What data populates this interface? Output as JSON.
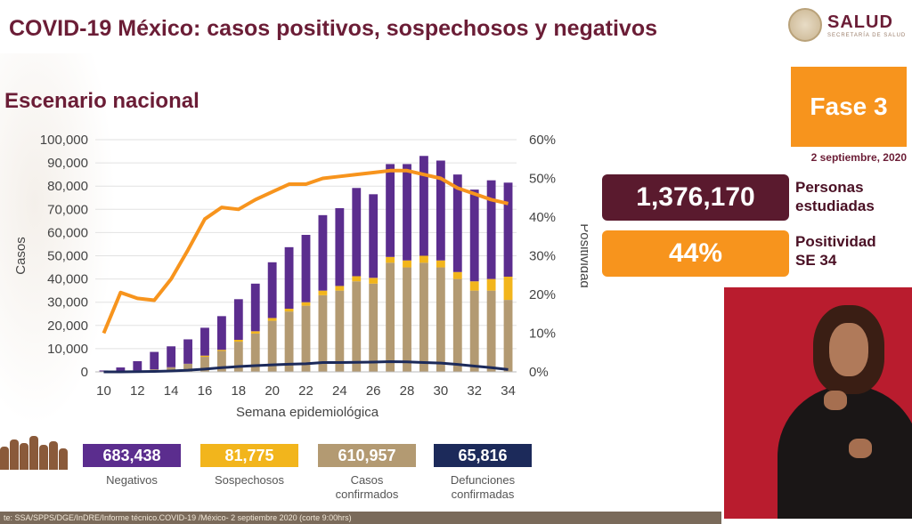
{
  "header": {
    "title": "COVID-19 México: casos positivos, sospechosos y negativos",
    "subtitle": "Escenario nacional",
    "logo_text": "SALUD",
    "logo_subtext": "SECRETARÍA DE SALUD"
  },
  "fase": {
    "label": "Fase 3",
    "date": "2 septiembre, 2020"
  },
  "stats": {
    "estudiadas_value": "1,376,170",
    "estudiadas_label_1": "Personas",
    "estudiadas_label_2": "estudiadas",
    "positividad_value": "44%",
    "positividad_label_1": "Positividad",
    "positividad_label_2": "SE 34"
  },
  "legend": [
    {
      "value": "683,438",
      "label_1": "Negativos",
      "label_2": "",
      "color": "#5b2d8e"
    },
    {
      "value": "81,775",
      "label_1": "Sospechosos",
      "label_2": "",
      "color": "#f2b51c"
    },
    {
      "value": "610,957",
      "label_1": "Casos",
      "label_2": "confirmados",
      "color": "#b39a72"
    },
    {
      "value": "65,816",
      "label_1": "Defunciones",
      "label_2": "confirmadas",
      "color": "#1c2a5a"
    }
  ],
  "source": "te: SSA/SPPS/DGE/InDRE/Informe técnico.COVID-19 /México- 2 septiembre 2020 (corte 9:00hrs)",
  "colors": {
    "maroon": "#6b1d36",
    "orange": "#f7941d",
    "dark_maroon": "#5a1a2e",
    "negativos": "#5b2d8e",
    "sospechosos": "#f2b51c",
    "confirmados": "#b39a72",
    "defunciones": "#1c2a5a",
    "positividad": "#f7941d"
  },
  "chart_data": {
    "type": "bar",
    "xlabel": "Semana epidemiológica",
    "ylabel": "Casos",
    "y2label": "Positividad",
    "ylim": [
      0,
      100000
    ],
    "y2lim": [
      0,
      60
    ],
    "y_ticks": [
      "0",
      "10,000",
      "20,000",
      "30,000",
      "40,000",
      "50,000",
      "60,000",
      "70,000",
      "80,000",
      "90,000",
      "100,000"
    ],
    "y2_ticks": [
      "0%",
      "10%",
      "20%",
      "30%",
      "40%",
      "50%",
      "60%"
    ],
    "x_tick_labels": [
      "10",
      "12",
      "14",
      "16",
      "18",
      "20",
      "22",
      "24",
      "26",
      "28",
      "30",
      "32",
      "34"
    ],
    "categories": [
      10,
      11,
      12,
      13,
      14,
      15,
      16,
      17,
      18,
      19,
      20,
      21,
      22,
      23,
      24,
      25,
      26,
      27,
      28,
      29,
      30,
      31,
      32,
      33,
      34
    ],
    "series": [
      {
        "name": "Casos confirmados",
        "type": "stacked-bar",
        "values": [
          100,
          400,
          600,
          1100,
          2000,
          3500,
          6500,
          9000,
          13000,
          16500,
          22000,
          26000,
          28500,
          33000,
          35000,
          39000,
          38000,
          47000,
          45000,
          47000,
          45000,
          40000,
          35000,
          35000,
          31000
        ]
      },
      {
        "name": "Sospechosos",
        "type": "stacked-bar",
        "values": [
          0,
          0,
          0,
          0,
          0,
          0,
          500,
          500,
          800,
          1000,
          1200,
          1200,
          1500,
          2000,
          2000,
          2200,
          2500,
          2500,
          3000,
          3000,
          3000,
          3000,
          4000,
          5000,
          10000
        ]
      },
      {
        "name": "Negativos",
        "type": "stacked-bar",
        "values": [
          500,
          1500,
          4000,
          7500,
          9000,
          10500,
          12000,
          14500,
          17500,
          20500,
          24000,
          26500,
          29000,
          32500,
          33500,
          38000,
          36000,
          40000,
          41500,
          43000,
          43000,
          42000,
          39500,
          42500,
          40500
        ]
      },
      {
        "name": "Defunciones confirmadas",
        "type": "line",
        "values": [
          0,
          0,
          100,
          200,
          400,
          700,
          1200,
          1800,
          2300,
          2700,
          3000,
          3300,
          3500,
          4000,
          4000,
          4100,
          4200,
          4400,
          4300,
          4000,
          3800,
          3200,
          2500,
          1800,
          1000
        ]
      },
      {
        "name": "Positividad",
        "type": "line",
        "axis": "right",
        "values": [
          10,
          20.5,
          19,
          18.5,
          24,
          31.5,
          39.5,
          42.5,
          42,
          44.5,
          46.5,
          48.5,
          48.5,
          50,
          50.5,
          51,
          51.5,
          52,
          52,
          51,
          50,
          47.5,
          46,
          44.5,
          43.5
        ]
      }
    ]
  }
}
